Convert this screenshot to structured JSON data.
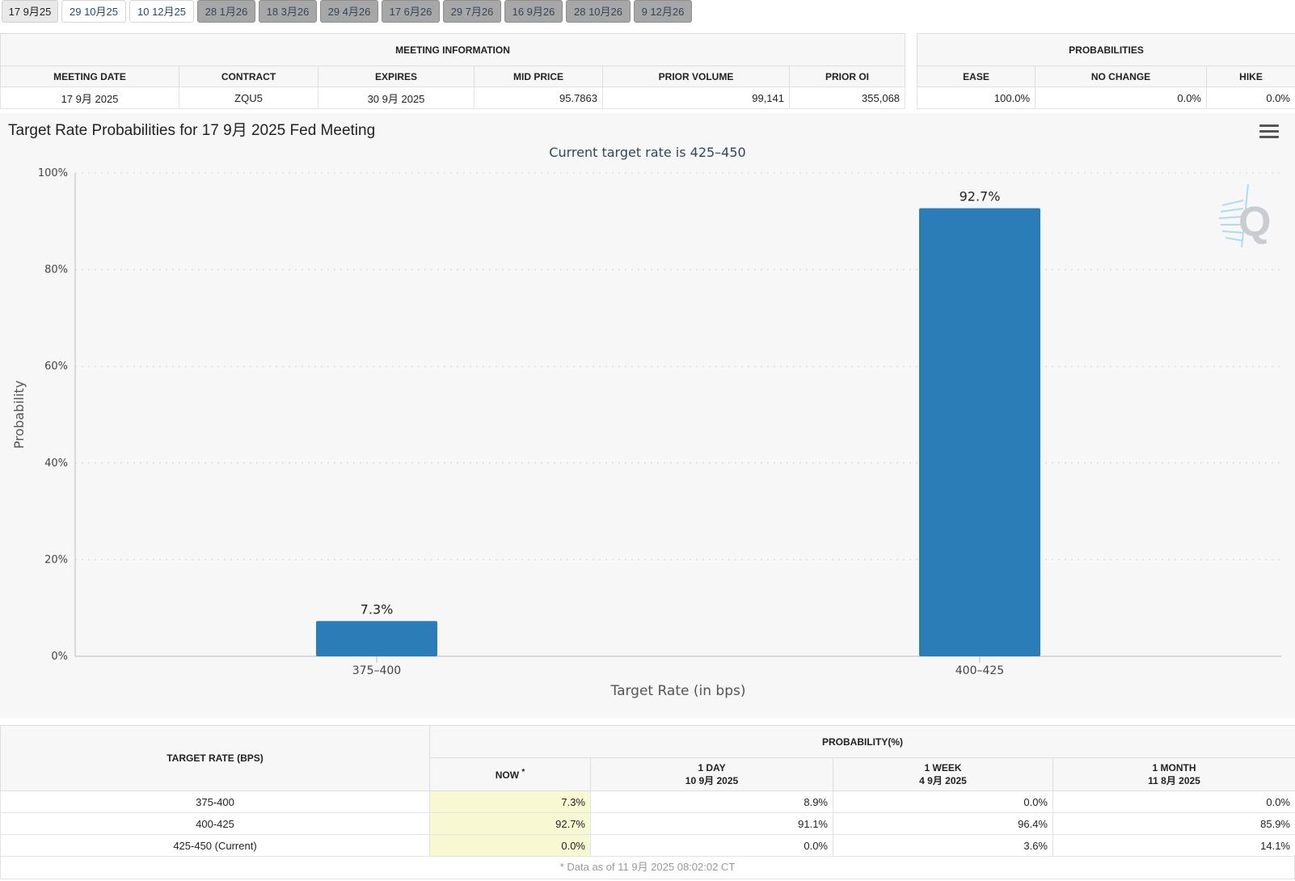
{
  "tabs": [
    {
      "label": "17 9月25",
      "state": "active"
    },
    {
      "label": "29 10月25",
      "state": "light"
    },
    {
      "label": "10 12月25",
      "state": "light"
    },
    {
      "label": "28 1月26",
      "state": "dark"
    },
    {
      "label": "18 3月26",
      "state": "dark"
    },
    {
      "label": "29 4月26",
      "state": "dark"
    },
    {
      "label": "17 6月26",
      "state": "dark"
    },
    {
      "label": "29 7月26",
      "state": "dark"
    },
    {
      "label": "16 9月26",
      "state": "dark"
    },
    {
      "label": "28 10月26",
      "state": "dark"
    },
    {
      "label": "9 12月26",
      "state": "dark"
    }
  ],
  "meeting_info": {
    "heading": "MEETING INFORMATION",
    "columns": [
      "MEETING DATE",
      "CONTRACT",
      "EXPIRES",
      "MID PRICE",
      "PRIOR VOLUME",
      "PRIOR OI"
    ],
    "row": {
      "meeting_date": "17 9月 2025",
      "contract": "ZQU5",
      "expires": "30 9月 2025",
      "mid_price": "95.7863",
      "prior_volume": "99,141",
      "prior_oi": "355,068"
    }
  },
  "probabilities": {
    "heading": "PROBABILITIES",
    "columns": [
      "EASE",
      "NO CHANGE",
      "HIKE"
    ],
    "row": {
      "ease": "100.0%",
      "no_change": "0.0%",
      "hike": "0.0%"
    }
  },
  "chart": {
    "title": "Target Rate Probabilities for 17 9月 2025 Fed Meeting",
    "subtitle": "Current target rate is 425–450"
  },
  "chart_data": {
    "type": "bar",
    "title": "Target Rate Probabilities for 17 9月 2025 Fed Meeting",
    "subtitle": "Current target rate is 425–450",
    "categories": [
      "375–400",
      "400–425"
    ],
    "values": [
      7.3,
      92.7
    ],
    "data_labels": [
      "7.3%",
      "92.7%"
    ],
    "xlabel": "Target Rate (in bps)",
    "ylabel": "Probability",
    "ylim": [
      0,
      100
    ],
    "yticks": [
      "0%",
      "20%",
      "40%",
      "60%",
      "80%",
      "100%"
    ],
    "grid": true,
    "bar_color": "#2a7db7"
  },
  "rate_table": {
    "col_target": "TARGET RATE (BPS)",
    "group_heading": "PROBABILITY(%)",
    "now_label": "NOW",
    "now_mark": "*",
    "day_label": "1 DAY",
    "day_date": "10 9月 2025",
    "week_label": "1 WEEK",
    "week_date": "4 9月 2025",
    "month_label": "1 MONTH",
    "month_date": "11 8月 2025",
    "rows": [
      {
        "rate": "375-400",
        "now": "7.3%",
        "day": "8.9%",
        "week": "0.0%",
        "month": "0.0%"
      },
      {
        "rate": "400-425",
        "now": "92.7%",
        "day": "91.1%",
        "week": "96.4%",
        "month": "85.9%"
      },
      {
        "rate": "425-450 (Current)",
        "now": "0.0%",
        "day": "0.0%",
        "week": "3.6%",
        "month": "14.1%"
      }
    ],
    "footnote": "* Data as of 11 9月 2025 08:02:02 CT"
  }
}
